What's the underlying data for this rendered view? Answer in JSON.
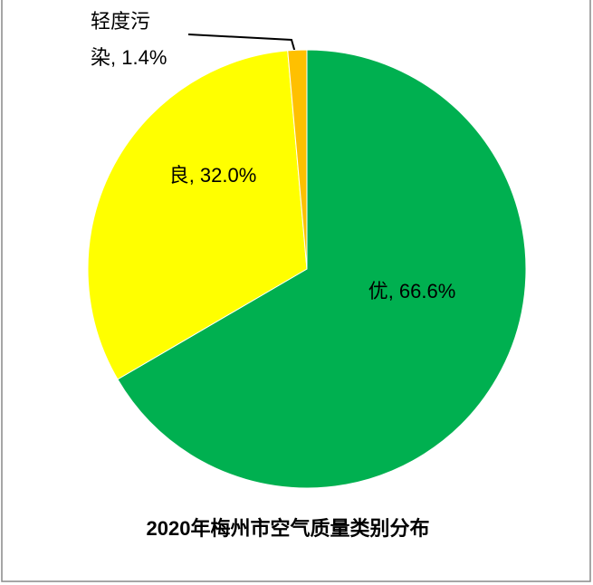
{
  "chart_data": {
    "type": "pie",
    "title": "2020年梅州市空气质量类别分布",
    "categories": [
      "优",
      "良",
      "轻度污染"
    ],
    "values": [
      66.6,
      32.0,
      1.4
    ],
    "value_labels": [
      "66.6%",
      "32.0%",
      "1.4%"
    ],
    "label_separator": ", ",
    "colors": [
      "#00b050",
      "#ffff00",
      "#ffc000"
    ]
  }
}
